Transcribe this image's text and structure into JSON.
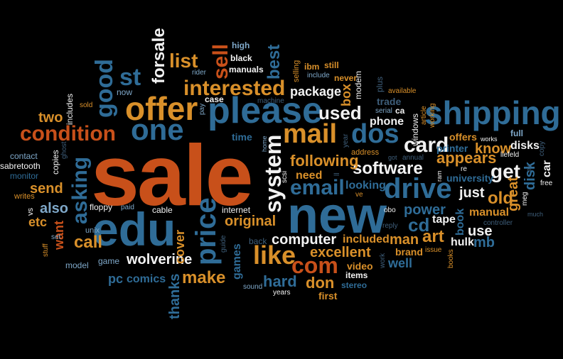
{
  "palette": {
    "background": "#000000",
    "orange": "#C8501A",
    "blue": "#2F6C97",
    "lightblue": "#7FA8C9",
    "gold": "#D9902A",
    "white": "#F2F2F2",
    "slate": "#3E5E7A"
  },
  "words": [
    {
      "text": "sale"
    },
    {
      "text": "new"
    },
    {
      "text": "edu"
    },
    {
      "text": "please"
    },
    {
      "text": "shipping"
    },
    {
      "text": "offer"
    },
    {
      "text": "one"
    },
    {
      "text": "condition"
    },
    {
      "text": "mail"
    },
    {
      "text": "drive"
    },
    {
      "text": "system"
    },
    {
      "text": "dos"
    },
    {
      "text": "price"
    },
    {
      "text": "email"
    },
    {
      "text": "interested"
    },
    {
      "text": "software"
    },
    {
      "text": "card"
    },
    {
      "text": "used"
    },
    {
      "text": "like"
    },
    {
      "text": "com"
    },
    {
      "text": "good"
    },
    {
      "text": "asking"
    },
    {
      "text": "forsale"
    },
    {
      "text": "st"
    },
    {
      "text": "list"
    },
    {
      "text": "sell"
    },
    {
      "text": "best"
    },
    {
      "text": "get"
    },
    {
      "text": "computer"
    },
    {
      "text": "wolverine"
    },
    {
      "text": "make"
    },
    {
      "text": "original"
    },
    {
      "text": "following"
    },
    {
      "text": "power"
    },
    {
      "text": "cd"
    },
    {
      "text": "excellent"
    },
    {
      "text": "appears"
    },
    {
      "text": "know"
    },
    {
      "text": "just"
    },
    {
      "text": "old"
    },
    {
      "text": "great"
    },
    {
      "text": "hard"
    },
    {
      "text": "don"
    },
    {
      "text": "man"
    },
    {
      "text": "art"
    },
    {
      "text": "send"
    },
    {
      "text": "also"
    },
    {
      "text": "call"
    },
    {
      "text": "want"
    },
    {
      "text": "cover"
    },
    {
      "text": "games"
    },
    {
      "text": "package"
    },
    {
      "text": "box"
    },
    {
      "text": "thanks"
    },
    {
      "text": "two"
    },
    {
      "text": "etc"
    },
    {
      "text": "comics"
    },
    {
      "text": "pc"
    },
    {
      "text": "manual"
    },
    {
      "text": "mb"
    },
    {
      "text": "use"
    },
    {
      "text": "hulk"
    },
    {
      "text": "disk"
    },
    {
      "text": "disks"
    },
    {
      "text": "car"
    },
    {
      "text": "need"
    },
    {
      "text": "phone"
    },
    {
      "text": "looking"
    },
    {
      "text": "tape"
    },
    {
      "text": "included"
    },
    {
      "text": "well"
    },
    {
      "text": "brand"
    },
    {
      "text": "first"
    },
    {
      "text": "video"
    },
    {
      "text": "items"
    },
    {
      "text": "stereo"
    },
    {
      "text": "book"
    },
    {
      "text": "university"
    },
    {
      "text": "offers"
    },
    {
      "text": "full"
    },
    {
      "text": "printer"
    },
    {
      "text": "time"
    },
    {
      "text": "high"
    },
    {
      "text": "black"
    },
    {
      "text": "manuals"
    },
    {
      "text": "ibm"
    },
    {
      "text": "still"
    },
    {
      "text": "selling"
    },
    {
      "text": "include"
    },
    {
      "text": "never"
    },
    {
      "text": "modem"
    },
    {
      "text": "trade"
    },
    {
      "text": "plus"
    },
    {
      "text": "available"
    },
    {
      "text": "ca"
    },
    {
      "text": "serial"
    },
    {
      "text": "windows"
    },
    {
      "text": "working"
    },
    {
      "text": "article"
    },
    {
      "text": "rider"
    },
    {
      "text": "case"
    },
    {
      "text": "pay"
    },
    {
      "text": "machine"
    },
    {
      "text": "now"
    },
    {
      "text": "sold"
    },
    {
      "text": "includes"
    },
    {
      "text": "contact"
    },
    {
      "text": "sabretooth"
    },
    {
      "text": "copies"
    },
    {
      "text": "ghost"
    },
    {
      "text": "monitor"
    },
    {
      "text": "writes"
    },
    {
      "text": "vs"
    },
    {
      "text": "floppy"
    },
    {
      "text": "paid"
    },
    {
      "text": "cable"
    },
    {
      "text": "internet"
    },
    {
      "text": "unix"
    },
    {
      "text": "set"
    },
    {
      "text": "stuff"
    },
    {
      "text": "model"
    },
    {
      "text": "game"
    },
    {
      "text": "guide"
    },
    {
      "text": "back"
    },
    {
      "text": "sound"
    },
    {
      "text": "years"
    },
    {
      "text": "scsi"
    },
    {
      "text": "home"
    },
    {
      "text": "year"
    },
    {
      "text": "address"
    },
    {
      "text": "got"
    },
    {
      "text": "annual"
    },
    {
      "text": "ll"
    },
    {
      "text": "ve"
    },
    {
      "text": "obo"
    },
    {
      "text": "reply"
    },
    {
      "text": "work"
    },
    {
      "text": "issue"
    },
    {
      "text": "books"
    },
    {
      "text": "controller"
    },
    {
      "text": "much"
    },
    {
      "text": "meg"
    },
    {
      "text": "free"
    },
    {
      "text": "copy"
    },
    {
      "text": "liefeld"
    },
    {
      "text": "works"
    },
    {
      "text": "ram"
    },
    {
      "text": "re"
    },
    {
      "text": "ex"
    }
  ]
}
